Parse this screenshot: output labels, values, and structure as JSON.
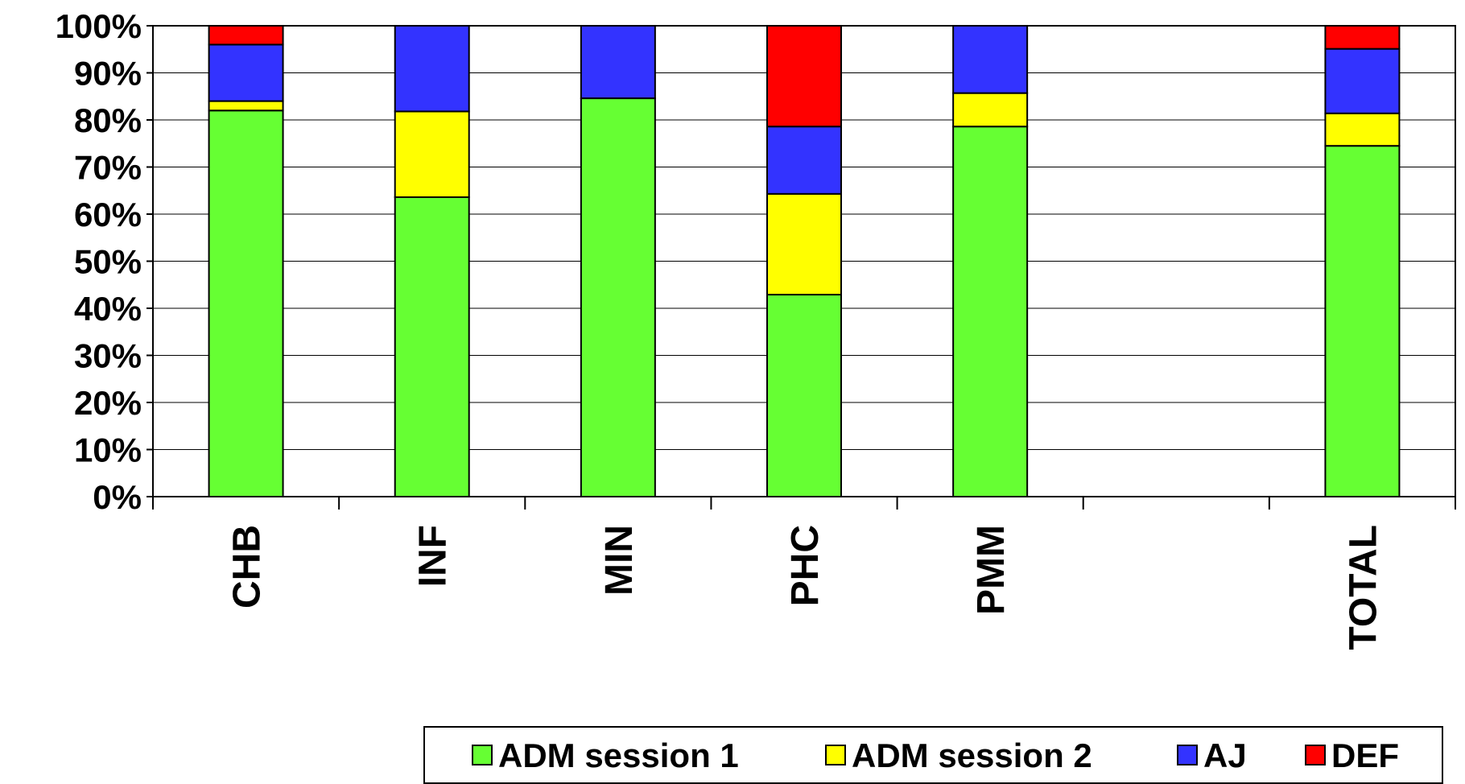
{
  "chart_data": {
    "type": "bar",
    "stacked": true,
    "categories": [
      "CHB",
      "INF",
      "MIN",
      "PHC",
      "PMM",
      "",
      "TOTAL"
    ],
    "series": [
      {
        "name": "ADM session 1",
        "color": "#66ff33",
        "values": [
          82,
          63.6,
          84.6,
          42.9,
          78.6,
          0,
          74.5
        ]
      },
      {
        "name": "ADM session 2",
        "color": "#ffff00",
        "values": [
          2,
          18.2,
          0,
          21.4,
          7.1,
          0,
          6.9
        ]
      },
      {
        "name": "AJ",
        "color": "#3333ff",
        "values": [
          12,
          18.2,
          15.4,
          14.3,
          14.3,
          0,
          13.7
        ]
      },
      {
        "name": "DEF",
        "color": "#ff0000",
        "values": [
          4,
          0,
          0,
          21.4,
          0,
          0,
          4.9
        ]
      }
    ],
    "y_ticks": [
      "0%",
      "10%",
      "20%",
      "30%",
      "40%",
      "50%",
      "60%",
      "70%",
      "80%",
      "90%",
      "100%"
    ],
    "ylim": [
      0,
      100
    ],
    "grid": true,
    "legend_position": "bottom-right",
    "title": "",
    "xlabel": "",
    "ylabel": ""
  }
}
